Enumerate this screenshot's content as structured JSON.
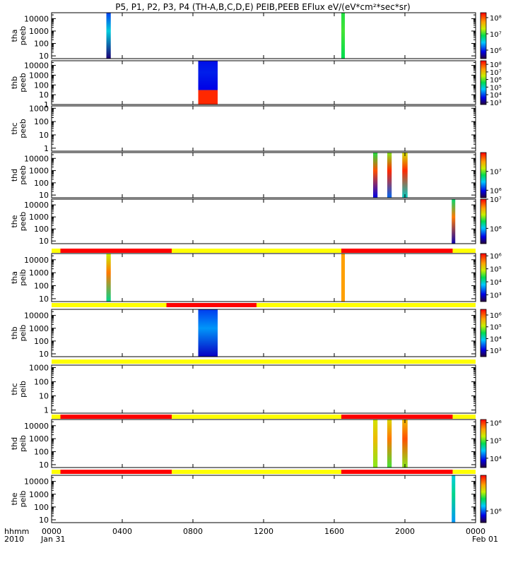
{
  "title": "P5, P1, P2, P3, P4 (TH-A,B,C,D,E) PEIB,PEEB EFlux eV/(eV*cm²*sec*sr)",
  "x_axis": {
    "row_label_1": "hhmm",
    "row_label_2": "2010",
    "ticks": [
      "0000",
      "0400",
      "0800",
      "1200",
      "1600",
      "2000",
      "0000"
    ],
    "tick_hours": [
      0,
      4,
      8,
      12,
      16,
      20,
      24
    ],
    "date_start": "Jan 31",
    "date_end": "Feb 01"
  },
  "chart_data": {
    "type": "heatmap",
    "x_unit": "hours since 2010-01-31 00:00",
    "xlim": [
      0,
      24
    ],
    "y_scale": "log",
    "colormap": "rainbow",
    "panels": [
      {
        "id": "tha-peeb",
        "label": [
          "tha",
          "peeb"
        ],
        "ylim": [
          6,
          30000
        ],
        "yticks": [
          "10",
          "100",
          "1000",
          "10000"
        ],
        "ytick_values": [
          10,
          100,
          1000,
          10000
        ],
        "colorbar": {
          "ticks": [
            "10⁶",
            "10⁷",
            "10⁸"
          ],
          "values": [
            1000000.0,
            10000000.0,
            100000000.0
          ],
          "zlim": [
            300000.0,
            200000000.0
          ]
        },
        "blocks": [
          {
            "x": [
              3.1,
              3.35
            ],
            "y": [
              6,
              30000
            ],
            "level": 0.38,
            "base_level": 0.05
          },
          {
            "x": [
              16.4,
              16.6
            ],
            "y": [
              6,
              30000
            ],
            "level": 0.55,
            "base_level": 0.5
          }
        ]
      },
      {
        "id": "thb-peeb",
        "label": [
          "thb",
          "peeb"
        ],
        "ylim": [
          1,
          30000
        ],
        "yticks": [
          "1",
          "10",
          "100",
          "1000",
          "10000"
        ],
        "ytick_values": [
          1,
          10,
          100,
          1000,
          10000
        ],
        "colorbar": {
          "ticks": [
            "10³",
            "10⁴",
            "10⁵",
            "10⁶",
            "10⁷",
            "10⁸"
          ],
          "values": [
            1000.0,
            10000.0,
            100000.0,
            1000000.0,
            10000000.0,
            100000000.0
          ],
          "zlim": [
            500.0,
            300000000.0
          ]
        },
        "blocks": [
          {
            "x": [
              8.3,
              9.4
            ],
            "y": [
              30,
              30000
            ],
            "level": 0.18,
            "base_level": 0.15
          },
          {
            "x": [
              8.3,
              9.4
            ],
            "y": [
              1,
              30
            ],
            "level": 0.95,
            "base_level": 0.95
          }
        ]
      },
      {
        "id": "thc-peeb",
        "label": [
          "thc",
          "peeb"
        ],
        "ylim": [
          0.6,
          1500
        ],
        "yticks": [
          "1",
          "10",
          "100",
          "1000"
        ],
        "ytick_values": [
          1,
          10,
          100,
          1000
        ],
        "colorbar": null,
        "blocks": []
      },
      {
        "id": "thd-peeb",
        "label": [
          "thd",
          "peeb"
        ],
        "ylim": [
          6,
          30000
        ],
        "yticks": [
          "10",
          "100",
          "1000",
          "10000"
        ],
        "ytick_values": [
          10,
          100,
          1000,
          10000
        ],
        "colorbar": {
          "ticks": [
            "10⁶",
            "10⁷"
          ],
          "values": [
            1000000.0,
            10000000.0
          ],
          "zlim": [
            400000.0,
            100000000.0
          ]
        },
        "blocks": [
          {
            "x": [
              18.2,
              18.45
            ],
            "y": [
              6,
              30000
            ],
            "level": 0.9,
            "base_level": 0.15
          },
          {
            "x": [
              19.0,
              19.25
            ],
            "y": [
              6,
              30000
            ],
            "level": 0.95,
            "base_level": 0.25
          },
          {
            "x": [
              19.85,
              20.15
            ],
            "y": [
              6,
              30000
            ],
            "level": 0.95,
            "base_level": 0.4
          }
        ]
      },
      {
        "id": "the-peeb",
        "label": [
          "the",
          "peeb"
        ],
        "ylim": [
          6,
          30000
        ],
        "yticks": [
          "10",
          "100",
          "1000",
          "10000"
        ],
        "ytick_values": [
          10,
          100,
          1000,
          10000
        ],
        "colorbar": {
          "ticks": [
            "10⁶",
            "10⁷"
          ],
          "values": [
            1000000.0,
            10000000.0
          ],
          "zlim": [
            300000.0,
            10000000.0
          ]
        },
        "blocks": [
          {
            "x": [
              22.65,
              22.85
            ],
            "y": [
              6,
              30000
            ],
            "level": 0.85,
            "base_level": 0.1
          }
        ]
      },
      {
        "id": "tha-peib",
        "label": [
          "tha",
          "peib"
        ],
        "ylim": [
          6,
          30000
        ],
        "yticks": [
          "10",
          "100",
          "1000",
          "10000"
        ],
        "ytick_values": [
          10,
          100,
          1000,
          10000
        ],
        "colorbar": {
          "ticks": [
            "10³",
            "10⁴",
            "10⁵",
            "10⁶"
          ],
          "values": [
            1000.0,
            10000.0,
            100000.0,
            1000000.0
          ],
          "zlim": [
            300.0,
            1500000.0
          ]
        },
        "blocks": [
          {
            "x": [
              3.1,
              3.35
            ],
            "y": [
              6,
              30000
            ],
            "level": 0.85,
            "base_level": 0.45
          },
          {
            "x": [
              16.4,
              16.6
            ],
            "y": [
              6,
              30000
            ],
            "level": 0.8,
            "base_level": 0.8
          }
        ]
      },
      {
        "id": "thb-peib",
        "label": [
          "thb",
          "peib"
        ],
        "ylim": [
          6,
          30000
        ],
        "yticks": [
          "10",
          "100",
          "1000",
          "10000"
        ],
        "ytick_values": [
          10,
          100,
          1000,
          10000
        ],
        "colorbar": {
          "ticks": [
            "10³",
            "10⁴",
            "10⁵",
            "10⁶"
          ],
          "values": [
            1000.0,
            10000.0,
            100000.0,
            1000000.0
          ],
          "zlim": [
            300.0,
            3000000.0
          ]
        },
        "blocks": [
          {
            "x": [
              8.3,
              9.4
            ],
            "y": [
              6,
              30000
            ],
            "level": 0.3,
            "base_level": 0.12
          }
        ]
      },
      {
        "id": "thc-peib",
        "label": [
          "thc",
          "peib"
        ],
        "ylim": [
          0.6,
          1500
        ],
        "yticks": [
          "1",
          "10",
          "100",
          "1000"
        ],
        "ytick_values": [
          1,
          10,
          100,
          1000
        ],
        "colorbar": null,
        "blocks": []
      },
      {
        "id": "thd-peib",
        "label": [
          "thd",
          "peib"
        ],
        "ylim": [
          6,
          30000
        ],
        "yticks": [
          "10",
          "100",
          "1000",
          "10000"
        ],
        "ytick_values": [
          10,
          100,
          1000,
          10000
        ],
        "colorbar": {
          "ticks": [
            "10⁴",
            "10⁵",
            "10⁶"
          ],
          "values": [
            10000.0,
            100000.0,
            1000000.0
          ],
          "zlim": [
            3000.0,
            1500000.0
          ]
        },
        "blocks": [
          {
            "x": [
              18.2,
              18.45
            ],
            "y": [
              6,
              30000
            ],
            "level": 0.75,
            "base_level": 0.6
          },
          {
            "x": [
              19.0,
              19.25
            ],
            "y": [
              6,
              30000
            ],
            "level": 0.85,
            "base_level": 0.55
          },
          {
            "x": [
              19.85,
              20.15
            ],
            "y": [
              6,
              30000
            ],
            "level": 0.9,
            "base_level": 0.6
          }
        ]
      },
      {
        "id": "the-peib",
        "label": [
          "the",
          "peib"
        ],
        "ylim": [
          6,
          30000
        ],
        "yticks": [
          "10",
          "100",
          "1000",
          "10000"
        ],
        "ytick_values": [
          10,
          100,
          1000,
          10000
        ],
        "colorbar": {
          "ticks": [
            "10⁶"
          ],
          "values": [
            1000000.0
          ],
          "zlim": [
            700000.0,
            3000000.0
          ]
        },
        "blocks": [
          {
            "x": [
              22.65,
              22.85
            ],
            "y": [
              6,
              30000
            ],
            "level": 0.45,
            "base_level": 0.3
          }
        ]
      }
    ],
    "status_bars": [
      {
        "after_panel": 4,
        "segments": [
          {
            "x": [
              0,
              0.5
            ],
            "color": "yellow"
          },
          {
            "x": [
              0.5,
              6.8
            ],
            "color": "red"
          },
          {
            "x": [
              6.8,
              16.4
            ],
            "color": "yellow"
          },
          {
            "x": [
              16.4,
              22.7
            ],
            "color": "red"
          },
          {
            "x": [
              22.7,
              24
            ],
            "color": "yellow"
          }
        ]
      },
      {
        "after_panel": 5,
        "segments": [
          {
            "x": [
              0,
              6.5
            ],
            "color": "yellow"
          },
          {
            "x": [
              6.5,
              11.6
            ],
            "color": "red"
          },
          {
            "x": [
              11.6,
              24
            ],
            "color": "yellow"
          }
        ]
      },
      {
        "after_panel": 6,
        "segments": [
          {
            "x": [
              0,
              24
            ],
            "color": "yellow"
          }
        ]
      },
      {
        "after_panel": 7,
        "segments": [
          {
            "x": [
              0,
              0.5
            ],
            "color": "yellow"
          },
          {
            "x": [
              0.5,
              6.8
            ],
            "color": "red"
          },
          {
            "x": [
              6.8,
              16.4
            ],
            "color": "yellow"
          },
          {
            "x": [
              16.4,
              22.7
            ],
            "color": "red"
          },
          {
            "x": [
              22.7,
              24
            ],
            "color": "yellow"
          }
        ]
      },
      {
        "after_panel": 8,
        "segments": [
          {
            "x": [
              0,
              0.5
            ],
            "color": "yellow"
          },
          {
            "x": [
              0.5,
              6.8
            ],
            "color": "red"
          },
          {
            "x": [
              6.8,
              16.4
            ],
            "color": "yellow"
          },
          {
            "x": [
              16.4,
              22.7
            ],
            "color": "red"
          },
          {
            "x": [
              22.7,
              24
            ],
            "color": "yellow"
          }
        ]
      }
    ]
  },
  "colors": {
    "status_red": "#ff0000",
    "status_yellow": "#ffff00",
    "axis": "#000000"
  }
}
